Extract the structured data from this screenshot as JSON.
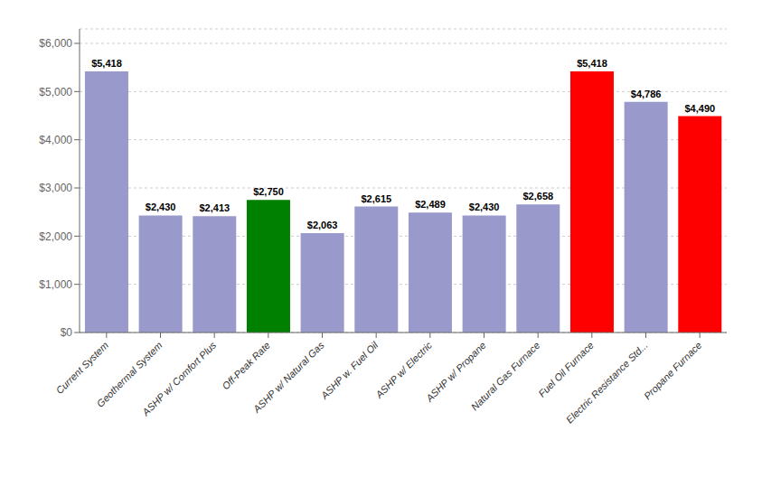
{
  "chart_data": {
    "type": "bar",
    "categories": [
      "Current System",
      "Geothermal System",
      "ASHP w/ Comfort Plus",
      "Off-Peak Rate",
      "ASHP w/ Natural Gas",
      "ASHP w. Fuel Oil",
      "ASHP w/ Electric",
      "ASHP w/ Propane",
      "Natural Gas Furnace",
      "Fuel Oil Furnace",
      "Electric Resistance Std...",
      "Propane Furnace"
    ],
    "values": [
      5418,
      2430,
      2413,
      2750,
      2063,
      2615,
      2489,
      2430,
      2658,
      5418,
      4786,
      4490
    ],
    "value_labels": [
      "$5,418",
      "$2,430",
      "$2,413",
      "$2,750",
      "$2,063",
      "$2,615",
      "$2,489",
      "$2,430",
      "$2,658",
      "$5,418",
      "$4,786",
      "$4,490"
    ],
    "colors": [
      "#9999CC",
      "#9999CC",
      "#9999CC",
      "#008000",
      "#9999CC",
      "#9999CC",
      "#9999CC",
      "#9999CC",
      "#9999CC",
      "#FF0000",
      "#9999CC",
      "#FF0000"
    ],
    "ylim": [
      0,
      6300
    ],
    "yticks": [
      {
        "value": 0,
        "label": "$0"
      },
      {
        "value": 1000,
        "label": "$1,000"
      },
      {
        "value": 2000,
        "label": "$2,000"
      },
      {
        "value": 3000,
        "label": "$3,000"
      },
      {
        "value": 4000,
        "label": "$4,000"
      },
      {
        "value": 5000,
        "label": "$5,000"
      },
      {
        "value": 6000,
        "label": "$6,000"
      }
    ],
    "grid": true,
    "data_labels": true
  }
}
